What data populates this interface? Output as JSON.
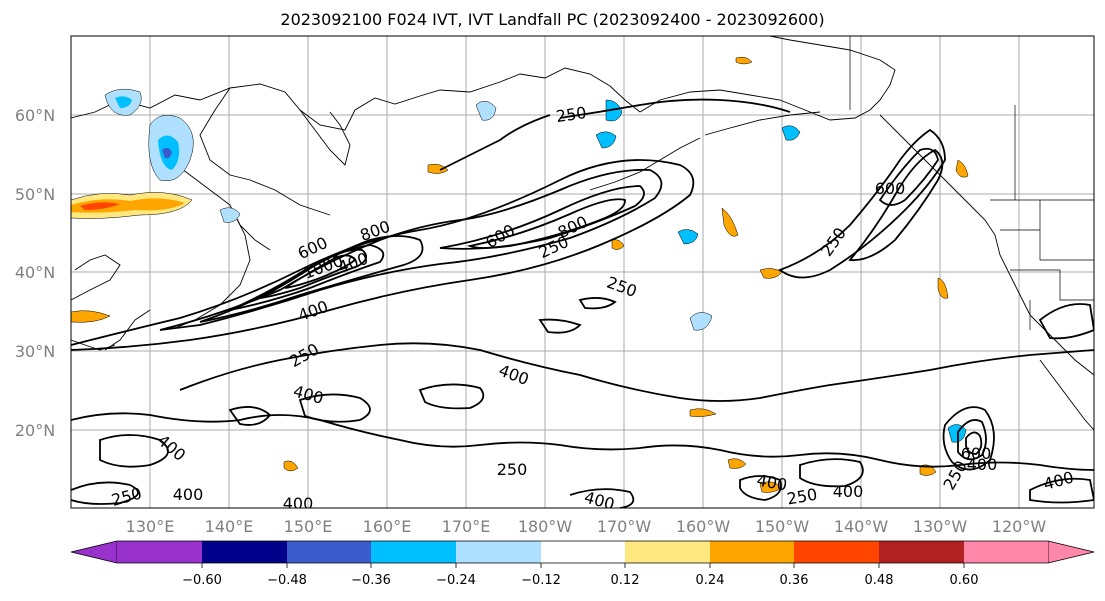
{
  "title": "2023092100 F024 IVT, IVT Landfall PC (2023092400 - 2023092600)",
  "lat_labels": [
    "60°N",
    "50°N",
    "40°N",
    "30°N",
    "20°N"
  ],
  "lon_labels": [
    "130°E",
    "140°E",
    "150°E",
    "160°E",
    "170°E",
    "180°W",
    "170°W",
    "160°W",
    "150°W",
    "140°W",
    "130°W",
    "120°W"
  ],
  "contour_labels": [
    {
      "text": "250"
    },
    {
      "text": "600"
    },
    {
      "text": "800"
    },
    {
      "text": "250"
    },
    {
      "text": "400"
    },
    {
      "text": "600"
    },
    {
      "text": "800"
    },
    {
      "text": "1000"
    },
    {
      "text": "400"
    },
    {
      "text": "250"
    },
    {
      "text": "250"
    },
    {
      "text": "400"
    },
    {
      "text": "400"
    },
    {
      "text": "400"
    },
    {
      "text": "250"
    },
    {
      "text": "250"
    },
    {
      "text": "400"
    },
    {
      "text": "400"
    },
    {
      "text": "400"
    },
    {
      "text": "250"
    },
    {
      "text": "400"
    },
    {
      "text": "400"
    },
    {
      "text": "400"
    },
    {
      "text": "600"
    },
    {
      "text": "250"
    },
    {
      "text": "400"
    },
    {
      "text": "600"
    },
    {
      "text": "250"
    }
  ],
  "colorbar": {
    "colors": [
      "#9932cc",
      "#00008b",
      "#3a5bcc",
      "#00bfff",
      "#b0e0ff",
      "#ffffff",
      "#ffe880",
      "#ffa500",
      "#ff4500",
      "#b22222",
      "#ff88aa"
    ],
    "tick_labels": [
      "−0.60",
      "−0.48",
      "−0.36",
      "−0.24",
      "−0.12",
      "0.12",
      "0.24",
      "0.36",
      "0.48",
      "0.60"
    ]
  }
}
